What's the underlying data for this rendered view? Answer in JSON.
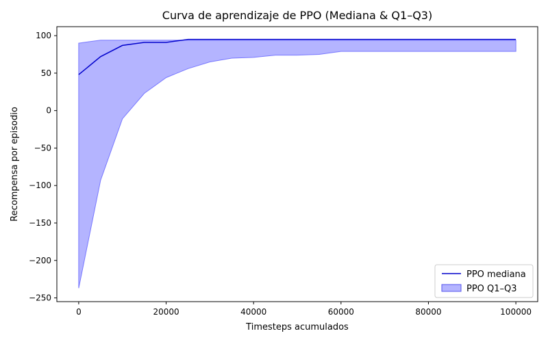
{
  "chart_data": {
    "type": "line",
    "title": "Curva de aprendizaje de PPO (Mediana & Q1–Q3)",
    "xlabel": "Timesteps acumulados",
    "ylabel": "Recompensa por episodio",
    "xlim": [
      -5000,
      105000
    ],
    "ylim": [
      -255,
      112
    ],
    "x_ticks": [
      0,
      20000,
      40000,
      60000,
      80000,
      100000
    ],
    "x_tick_labels": [
      "0",
      "20000",
      "40000",
      "60000",
      "80000",
      "100000"
    ],
    "y_ticks": [
      100,
      50,
      0,
      -50,
      -100,
      -150,
      -200,
      -250
    ],
    "y_tick_labels": [
      "100",
      "50",
      "0",
      "−50",
      "−100",
      "−150",
      "−200",
      "−250"
    ],
    "grid": false,
    "legend_position": "lower-right",
    "x": [
      0,
      5000,
      10000,
      15000,
      20000,
      25000,
      30000,
      35000,
      40000,
      45000,
      50000,
      55000,
      60000,
      65000,
      70000,
      75000,
      80000,
      85000,
      90000,
      95000,
      100000
    ],
    "series": [
      {
        "name": "PPO mediana",
        "kind": "line",
        "color": "#0000cc",
        "values": [
          48,
          72,
          87,
          91,
          91,
          95,
          95,
          95,
          95,
          95,
          95,
          95,
          95,
          95,
          95,
          95,
          95,
          95,
          95,
          95,
          95
        ]
      },
      {
        "name": "PPO Q1–Q3",
        "kind": "band",
        "color": "#7777ff",
        "q1": [
          -237,
          -93,
          -11,
          23,
          44,
          56,
          65,
          70,
          71,
          74,
          74,
          75,
          79,
          79,
          79,
          79,
          79,
          79,
          79,
          79,
          79
        ],
        "q3": [
          90,
          94,
          94,
          94,
          94,
          94,
          94,
          94,
          94,
          94,
          94,
          94,
          94,
          94,
          94,
          94,
          94,
          94,
          94,
          94,
          94
        ]
      }
    ]
  }
}
